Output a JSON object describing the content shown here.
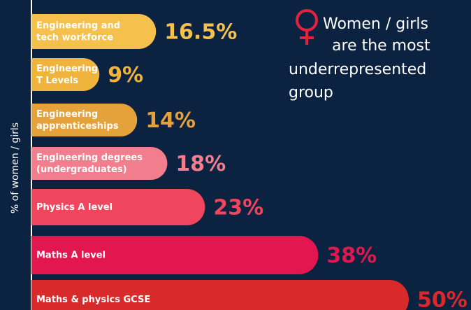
{
  "chart_data": {
    "type": "bar",
    "orientation": "horizontal",
    "y_axis_label": "% of women / girls",
    "categories": [
      [
        "Engineering and",
        "tech workforce"
      ],
      [
        "Engineering",
        "T Levels"
      ],
      [
        "Engineering",
        "apprenticeships"
      ],
      [
        "Engineering degrees",
        "(undergraduates)"
      ],
      [
        "Physics A level"
      ],
      [
        "Maths A level"
      ],
      [
        "Maths & physics GCSE"
      ]
    ],
    "values": [
      16.5,
      9,
      14,
      18,
      23,
      38,
      50
    ],
    "value_labels": [
      "16.5%",
      "9%",
      "14%",
      "18%",
      "23%",
      "38%",
      "50%"
    ],
    "colors": [
      "#f5c14c",
      "#f0b43d",
      "#e6a23a",
      "#f27d8c",
      "#ef455d",
      "#e3174f",
      "#d82a2a"
    ],
    "label_colors": [
      "#f5c14c",
      "#f0b43d",
      "#e6a23a",
      "#f27d8c",
      "#ef455d",
      "#e3174f",
      "#d82a2a"
    ],
    "xlim": [
      0,
      50
    ],
    "annotation": [
      "Women / girls",
      "are the most",
      "underrepresented",
      "group"
    ]
  }
}
